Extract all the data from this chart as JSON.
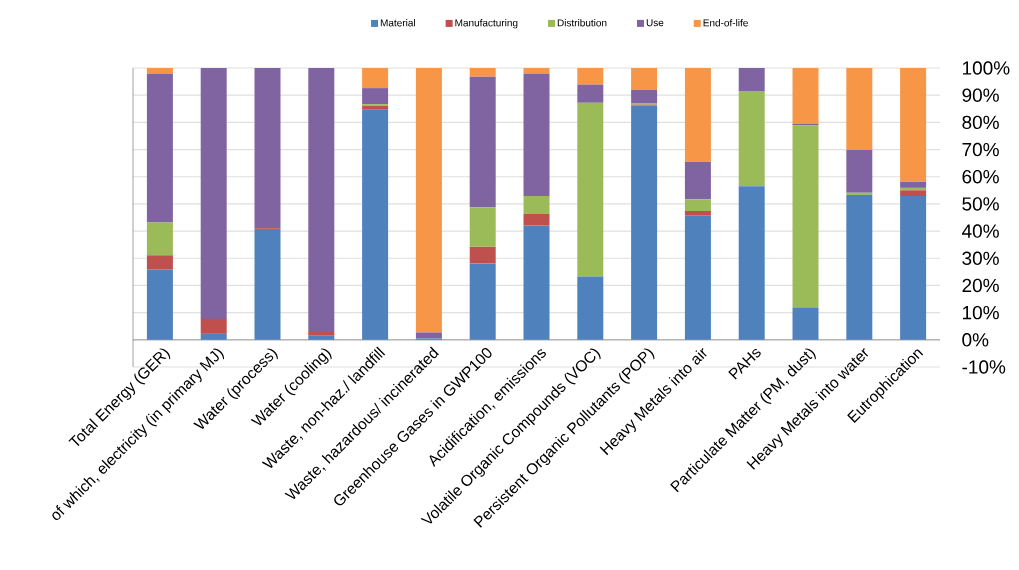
{
  "chart_data": {
    "type": "bar",
    "stacked": true,
    "categories": [
      "Total Energy (GER)",
      "of which, electricity (in primary MJ)",
      "Water (process)",
      "Water (cooling)",
      "Waste, non-haz./ landfill",
      "Waste, hazardous/ incinerated",
      "Greenhouse Gases in GWP100",
      "Acidification, emissions",
      "Volatile Organic Compounds (VOC)",
      "Persistent Organic Pollutants (POP)",
      "Heavy Metals into air",
      "PAHs",
      "Particulate Matter (PM, dust)",
      "Heavy Metals into water",
      "Eutrophication"
    ],
    "series": [
      {
        "name": "Material",
        "color": "#4f81bd",
        "values": [
          25.8,
          2.2,
          40.8,
          1.7,
          84.8,
          0.5,
          28.1,
          42.0,
          23.3,
          86.2,
          45.7,
          56.5,
          11.9,
          53.3,
          52.9
        ]
      },
      {
        "name": "Manufacturing",
        "color": "#c0504d",
        "values": [
          5.3,
          5.5,
          0.3,
          1.2,
          1.2,
          0,
          6.1,
          4.3,
          0,
          0.3,
          1.7,
          0,
          0,
          0,
          2.1
        ]
      },
      {
        "name": "Distribution",
        "color": "#9bbb59",
        "values": [
          12.1,
          0,
          0,
          0,
          0.7,
          0,
          14.6,
          6.6,
          63.9,
          0.4,
          4.3,
          35.0,
          67.0,
          0.8,
          0.9
        ]
      },
      {
        "name": "Use",
        "color": "#8064a2",
        "values": [
          54.8,
          92.3,
          58.9,
          97.1,
          5.9,
          2.2,
          48.0,
          45.1,
          6.7,
          5.1,
          13.8,
          8.5,
          0.6,
          15.7,
          2.3
        ]
      },
      {
        "name": "End-of-life",
        "color": "#f79646",
        "values": [
          2.0,
          0,
          0,
          0,
          7.4,
          97.3,
          3.2,
          2.0,
          6.1,
          8.0,
          34.5,
          0,
          20.5,
          30.2,
          41.8
        ]
      }
    ],
    "ylim": [
      -10,
      100
    ],
    "yticks": [
      {
        "value": -10,
        "label": "-10%"
      },
      {
        "value": 0,
        "label": "0%"
      },
      {
        "value": 10,
        "label": "10%"
      },
      {
        "value": 20,
        "label": "20%"
      },
      {
        "value": 30,
        "label": "30%"
      },
      {
        "value": 40,
        "label": "40%"
      },
      {
        "value": 50,
        "label": "50%"
      },
      {
        "value": 60,
        "label": "60%"
      },
      {
        "value": 70,
        "label": "70%"
      },
      {
        "value": 80,
        "label": "80%"
      },
      {
        "value": 90,
        "label": "90%"
      },
      {
        "value": 100,
        "label": "100%"
      }
    ],
    "grid": "y",
    "legend": "top"
  }
}
